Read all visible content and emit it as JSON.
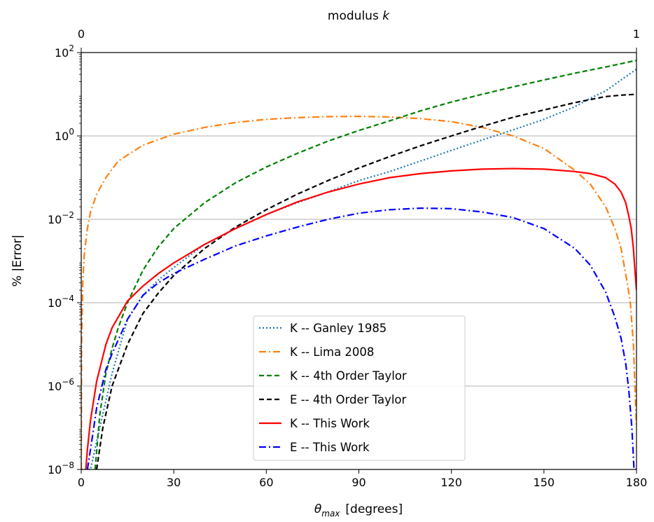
{
  "chart_data": {
    "type": "line",
    "xlabel_symbol": "θ",
    "xlabel_sub": "max",
    "xlabel_units": "[degrees]",
    "ylabel": "% |Error|",
    "top_xlabel_text": "modulus ",
    "top_xlabel_var": "k",
    "top_ticks": [
      "0",
      "1"
    ],
    "xlim": [
      0,
      180
    ],
    "ylim": [
      1e-08,
      100
    ],
    "yscale": "log",
    "x_ticks": [
      0,
      30,
      60,
      90,
      120,
      150,
      180
    ],
    "y_tick_exponents": [
      2,
      0,
      -2,
      -4,
      -6,
      -8
    ],
    "grid": "horizontal",
    "legend_position": "lower-center",
    "series": [
      {
        "name": "K -- Ganley 1985",
        "color": "#1f77b4",
        "style": "dotted",
        "x": [
          0,
          3,
          6,
          10,
          15,
          20,
          25,
          30,
          40,
          50,
          60,
          70,
          80,
          90,
          100,
          110,
          120,
          130,
          140,
          150,
          160,
          165,
          170,
          175,
          180
        ],
        "y": [
          1e-08,
          1e-08,
          1e-07,
          2e-06,
          4e-05,
          0.00015,
          0.00035,
          0.0007,
          0.0025,
          0.006,
          0.013,
          0.025,
          0.045,
          0.085,
          0.14,
          0.25,
          0.45,
          0.8,
          1.4,
          2.5,
          5,
          8,
          12,
          22,
          40
        ]
      },
      {
        "name": "K -- Lima 2008",
        "color": "#ff7f0e",
        "style": "dashdot",
        "x": [
          0,
          0.1,
          0.5,
          1,
          2,
          3,
          5,
          8,
          12,
          20,
          30,
          40,
          50,
          60,
          70,
          80,
          90,
          100,
          110,
          120,
          130,
          140,
          150,
          160,
          165,
          170,
          173,
          175,
          177,
          178,
          179,
          179.5,
          180
        ],
        "y": [
          1e-08,
          1e-05,
          0.0003,
          0.0015,
          0.006,
          0.015,
          0.04,
          0.1,
          0.25,
          0.6,
          1.1,
          1.6,
          2.1,
          2.5,
          2.75,
          2.9,
          2.95,
          2.85,
          2.6,
          2.2,
          1.6,
          1.0,
          0.5,
          0.15,
          0.07,
          0.02,
          0.006,
          0.002,
          0.0003,
          0.0001,
          1e-05,
          1e-06,
          1e-07
        ]
      },
      {
        "name": "K -- 4th Order Taylor",
        "color": "#008000",
        "style": "dashed",
        "x": [
          4.5,
          6,
          8,
          10,
          12,
          15,
          20,
          25,
          30,
          40,
          50,
          60,
          70,
          80,
          90,
          100,
          110,
          120,
          130,
          140,
          150,
          160,
          170,
          180
        ],
        "y": [
          1e-08,
          2e-07,
          2e-06,
          8e-06,
          2.5e-05,
          0.0001,
          0.0006,
          0.0022,
          0.006,
          0.025,
          0.075,
          0.18,
          0.38,
          0.75,
          1.35,
          2.3,
          4.0,
          6.5,
          10,
          15,
          22,
          32,
          45,
          65
        ]
      },
      {
        "name": "E -- 4th Order Taylor",
        "color": "#000000",
        "style": "dashed",
        "x": [
          5,
          7,
          10,
          15,
          20,
          25,
          30,
          40,
          50,
          60,
          70,
          80,
          90,
          100,
          110,
          120,
          130,
          140,
          150,
          160,
          170,
          175,
          180
        ],
        "y": [
          1e-08,
          1e-07,
          1e-06,
          1e-05,
          5.5e-05,
          0.00017,
          0.00045,
          0.002,
          0.0065,
          0.017,
          0.04,
          0.085,
          0.17,
          0.32,
          0.58,
          1.0,
          1.7,
          2.8,
          4.2,
          6.3,
          8.8,
          9.5,
          10
        ]
      },
      {
        "name": "K -- This Work",
        "color": "#ff0000",
        "style": "solid",
        "x": [
          1.5,
          2,
          3,
          5,
          8,
          10,
          15,
          20,
          25,
          30,
          40,
          50,
          60,
          70,
          80,
          90,
          100,
          110,
          120,
          130,
          140,
          150,
          160,
          165,
          170,
          173,
          175,
          176.5,
          177.5,
          178.3,
          179,
          179.5,
          180
        ],
        "y": [
          1e-08,
          3e-08,
          1.5e-07,
          1.3e-06,
          1e-05,
          2.5e-05,
          0.00011,
          0.00025,
          0.0005,
          0.0009,
          0.0025,
          0.006,
          0.013,
          0.026,
          0.045,
          0.07,
          0.1,
          0.125,
          0.145,
          0.16,
          0.165,
          0.16,
          0.14,
          0.125,
          0.1,
          0.07,
          0.045,
          0.025,
          0.012,
          0.006,
          0.002,
          0.0006,
          0.0002
        ]
      },
      {
        "name": "E -- This Work",
        "color": "#0000ff",
        "style": "dashdot",
        "x": [
          2,
          3,
          5,
          8,
          10,
          15,
          20,
          25,
          30,
          40,
          50,
          60,
          70,
          80,
          90,
          100,
          110,
          120,
          130,
          140,
          150,
          160,
          165,
          170,
          173,
          175,
          176.5,
          177.5,
          178.5,
          179.2,
          180
        ],
        "y": [
          1e-08,
          3e-08,
          3e-07,
          2.5e-06,
          6e-06,
          4e-05,
          0.00015,
          0.0003,
          0.0005,
          0.0011,
          0.0023,
          0.004,
          0.0065,
          0.01,
          0.014,
          0.017,
          0.0185,
          0.018,
          0.015,
          0.011,
          0.006,
          0.002,
          0.0008,
          0.00018,
          4.5e-05,
          1.4e-05,
          3.5e-06,
          8e-07,
          1e-07,
          1e-08,
          1e-08
        ]
      }
    ]
  }
}
